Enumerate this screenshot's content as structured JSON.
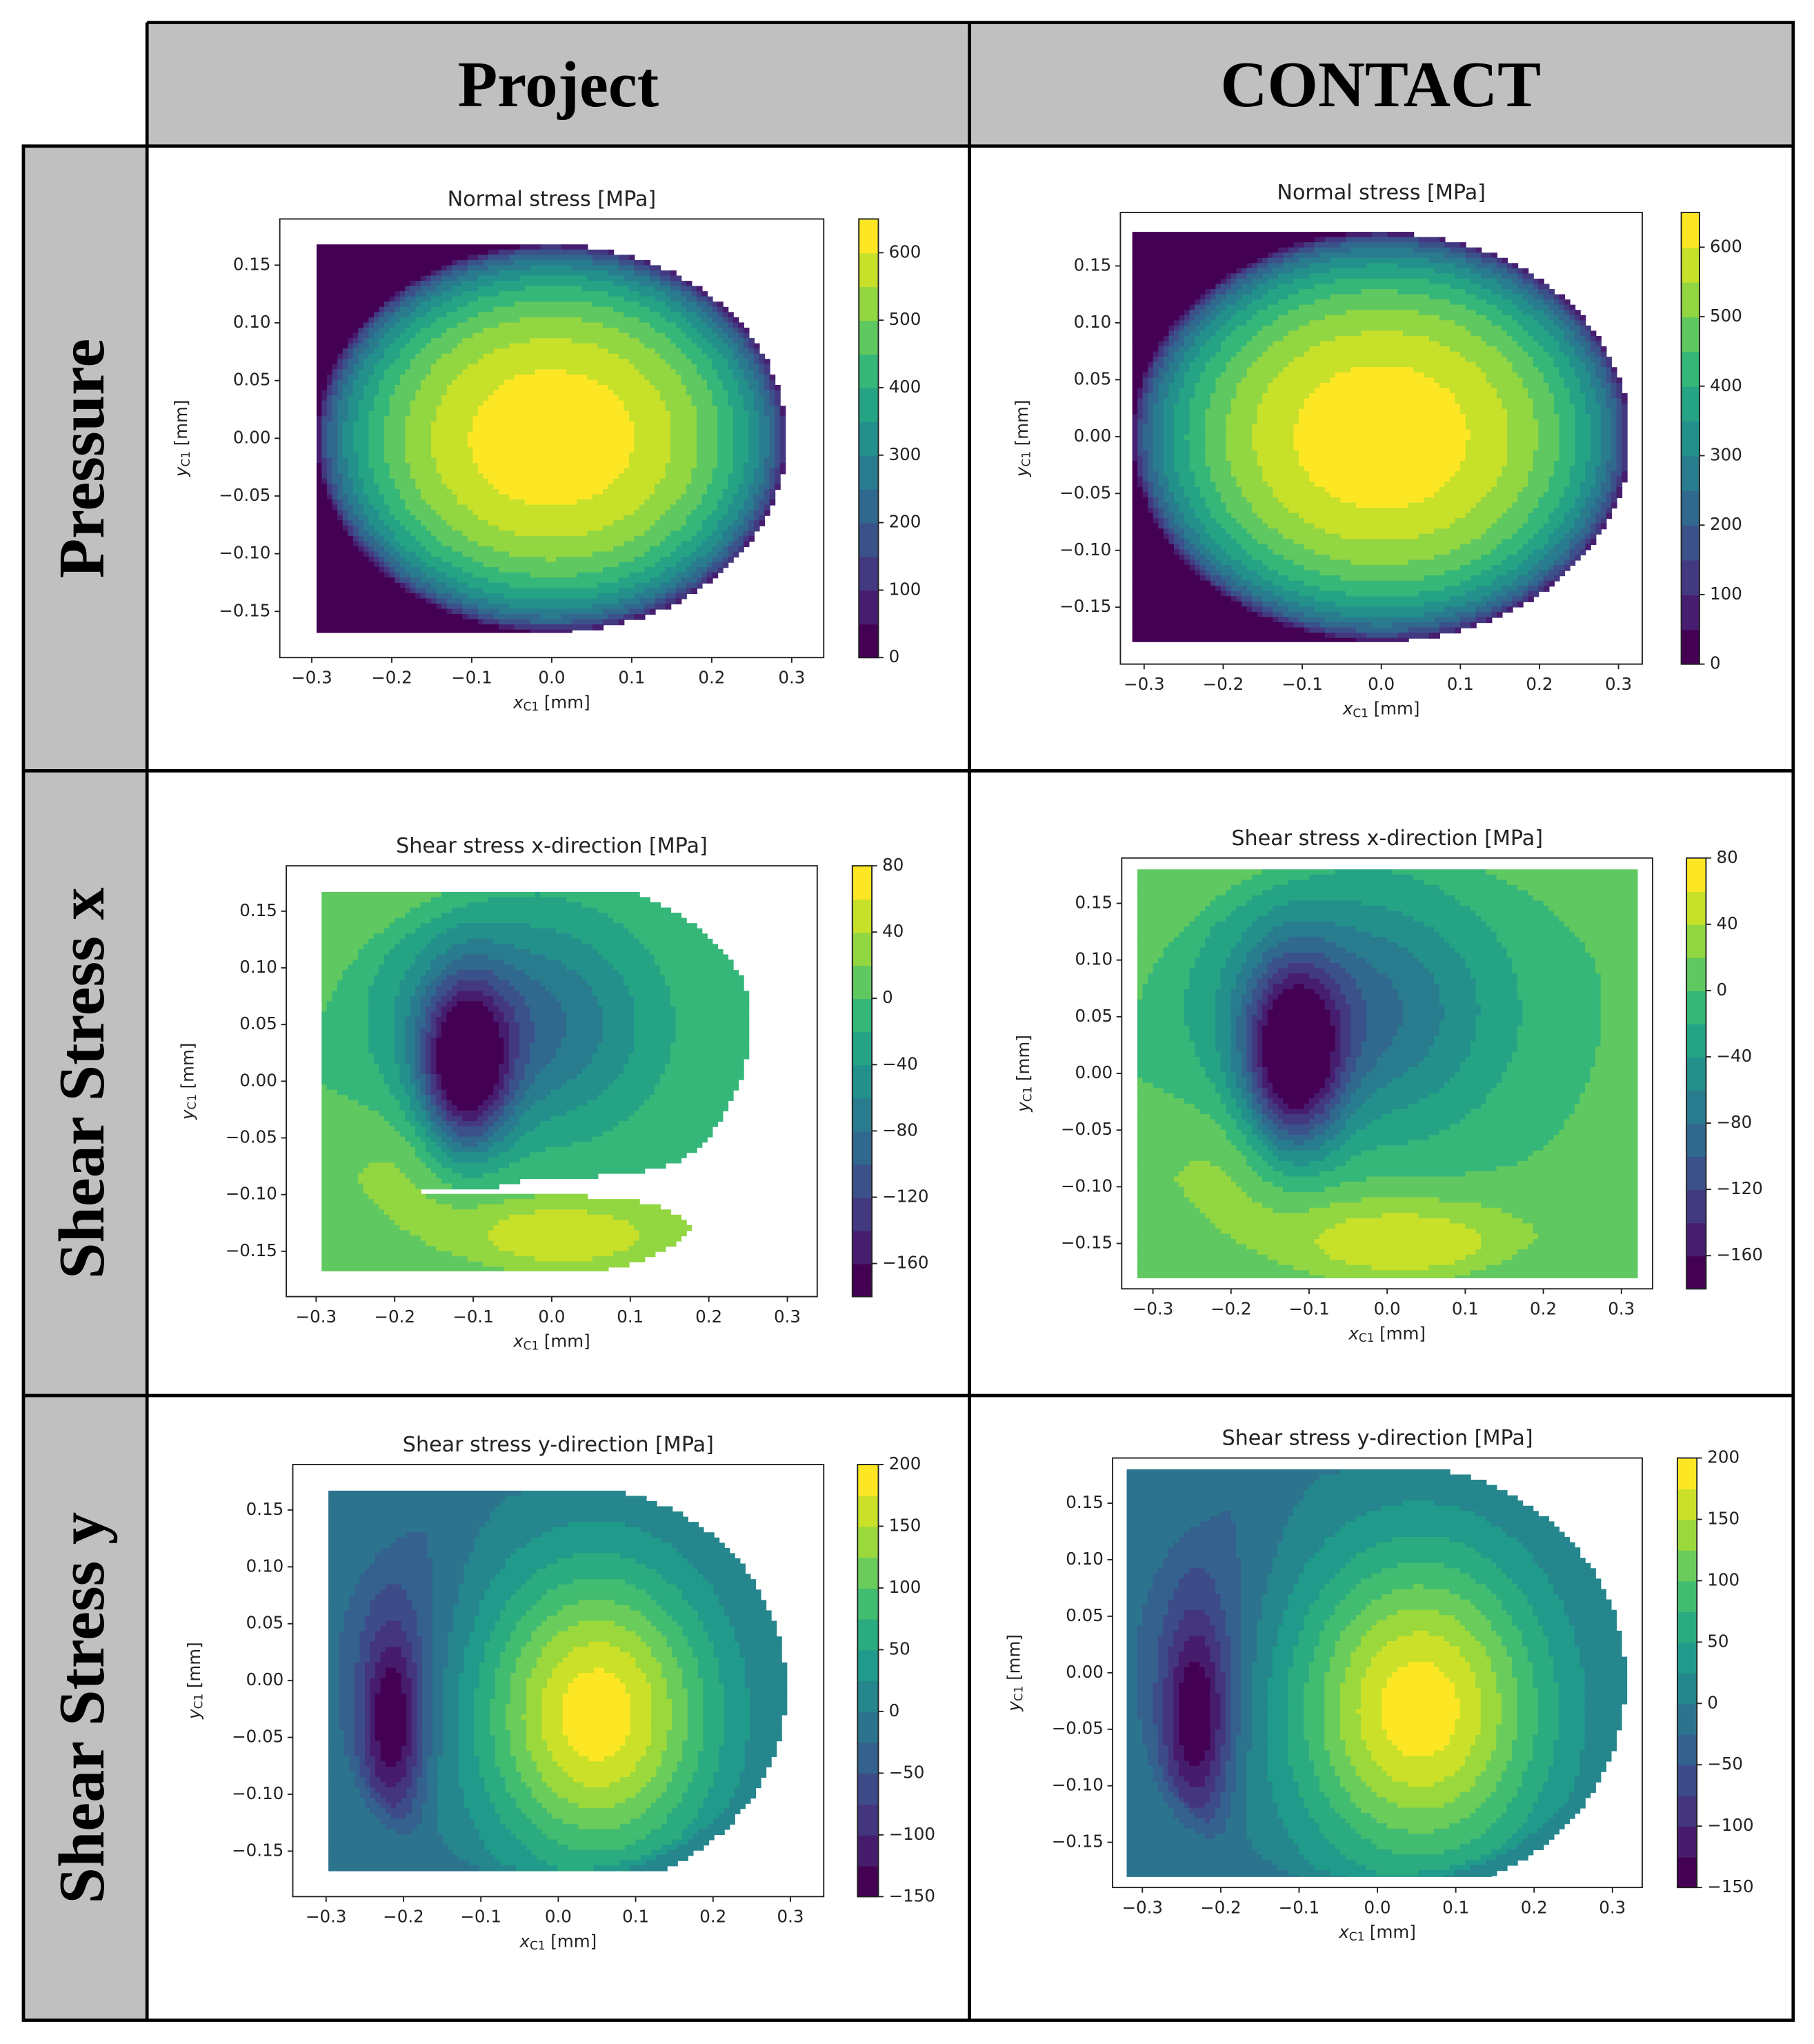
{
  "table": {
    "columns": [
      "Project",
      "CONTACT"
    ],
    "rows": [
      "Pressure",
      "Shear Stress x",
      "Shear Stress y"
    ]
  },
  "chart_data": [
    {
      "type": "contour",
      "title": "Normal stress [MPa]",
      "xlabel": {
        "symbol": "x",
        "subscript": "C1",
        "unit": "[mm]"
      },
      "ylabel": {
        "symbol": "y",
        "subscript": "C1",
        "unit": "[mm]"
      },
      "xlim": [
        -0.34,
        0.34
      ],
      "ylim": [
        -0.19,
        0.19
      ],
      "xticks": [
        {
          "value": -0.3,
          "label": "−0.3"
        },
        {
          "value": -0.2,
          "label": "−0.2"
        },
        {
          "value": -0.1,
          "label": "−0.1"
        },
        {
          "value": 0,
          "label": "0.0"
        },
        0.1,
        0.2,
        0.3
      ],
      "yticks": [
        {
          "value": -0.15,
          "label": "−0.15"
        },
        {
          "value": -0.1,
          "label": "−0.10"
        },
        {
          "value": -0.05,
          "label": "−0.05"
        },
        {
          "value": 0,
          "label": "0.00"
        },
        0.05,
        {
          "value": 0.1,
          "label": "0.10"
        },
        0.15
      ],
      "clim": [
        0,
        650
      ],
      "levels": [
        0,
        50,
        100,
        150,
        200,
        250,
        300,
        350,
        400,
        450,
        500,
        550,
        600,
        650
      ],
      "cticks": [
        0,
        100,
        200,
        300,
        400,
        500,
        600
      ],
      "colormap": "viridis"
    },
    {
      "type": "contour",
      "title": "Normal stress [MPa]",
      "xlabel": {
        "symbol": "x",
        "subscript": "C1",
        "unit": "[mm]"
      },
      "ylabel": {
        "symbol": "y",
        "subscript": "C1",
        "unit": "[mm]"
      },
      "xlim": [
        -0.33,
        0.33
      ],
      "ylim": [
        -0.2,
        0.197
      ],
      "xticks": [
        {
          "value": -0.3,
          "label": "−0.3"
        },
        {
          "value": -0.2,
          "label": "−0.2"
        },
        {
          "value": -0.1,
          "label": "−0.1"
        },
        {
          "value": 0,
          "label": "0.0"
        },
        0.1,
        0.2,
        0.3
      ],
      "yticks": [
        {
          "value": -0.15,
          "label": "−0.15"
        },
        {
          "value": -0.1,
          "label": "−0.10"
        },
        {
          "value": -0.05,
          "label": "−0.05"
        },
        {
          "value": 0,
          "label": "0.00"
        },
        0.05,
        {
          "value": 0.1,
          "label": "0.10"
        },
        0.15
      ],
      "clim": [
        0,
        650
      ],
      "levels": [
        0,
        50,
        100,
        150,
        200,
        250,
        300,
        350,
        400,
        450,
        500,
        550,
        600,
        650
      ],
      "cticks": [
        0,
        100,
        200,
        300,
        400,
        500,
        600
      ],
      "colormap": "viridis"
    },
    {
      "type": "contour",
      "title": "Shear stress x-direction [MPa]",
      "xlabel": {
        "symbol": "x",
        "subscript": "C1",
        "unit": "[mm]"
      },
      "ylabel": {
        "symbol": "y",
        "subscript": "C1",
        "unit": "[mm]"
      },
      "xlim": [
        -0.338,
        0.338
      ],
      "ylim": [
        -0.19,
        0.19
      ],
      "xticks": [
        {
          "value": -0.3,
          "label": "−0.3"
        },
        {
          "value": -0.2,
          "label": "−0.2"
        },
        {
          "value": -0.1,
          "label": "−0.1"
        },
        {
          "value": 0,
          "label": "0.0"
        },
        0.1,
        0.2,
        0.3
      ],
      "yticks": [
        {
          "value": -0.15,
          "label": "−0.15"
        },
        {
          "value": -0.1,
          "label": "−0.10"
        },
        {
          "value": -0.05,
          "label": "−0.05"
        },
        {
          "value": 0,
          "label": "0.00"
        },
        0.05,
        {
          "value": 0.1,
          "label": "0.10"
        },
        0.15
      ],
      "clim": [
        -180,
        80
      ],
      "levels": [
        -180,
        -160,
        -140,
        -120,
        -100,
        -80,
        -60,
        -40,
        -20,
        0,
        20,
        40,
        60,
        80
      ],
      "cticks": [
        {
          "value": -160,
          "label": "−160"
        },
        {
          "value": -120,
          "label": "−120"
        },
        {
          "value": -80,
          "label": "−80"
        },
        {
          "value": -40,
          "label": "−40"
        },
        0,
        40,
        80
      ],
      "colormap": "viridis"
    },
    {
      "type": "contour",
      "title": "Shear stress x-direction [MPa]",
      "xlabel": {
        "symbol": "x",
        "subscript": "C1",
        "unit": "[mm]"
      },
      "ylabel": {
        "symbol": "y",
        "subscript": "C1",
        "unit": "[mm]"
      },
      "xlim": [
        -0.34,
        0.34
      ],
      "ylim": [
        -0.19,
        0.19
      ],
      "xticks": [
        {
          "value": -0.3,
          "label": "−0.3"
        },
        {
          "value": -0.2,
          "label": "−0.2"
        },
        {
          "value": -0.1,
          "label": "−0.1"
        },
        {
          "value": 0,
          "label": "0.0"
        },
        0.1,
        0.2,
        0.3
      ],
      "yticks": [
        {
          "value": -0.15,
          "label": "−0.15"
        },
        {
          "value": -0.1,
          "label": "−0.10"
        },
        {
          "value": -0.05,
          "label": "−0.05"
        },
        {
          "value": 0,
          "label": "0.00"
        },
        0.05,
        {
          "value": 0.1,
          "label": "0.10"
        },
        0.15
      ],
      "clim": [
        -180,
        80
      ],
      "levels": [
        -180,
        -160,
        -140,
        -120,
        -100,
        -80,
        -60,
        -40,
        -20,
        0,
        20,
        40,
        60,
        80
      ],
      "cticks": [
        {
          "value": -160,
          "label": "−160"
        },
        {
          "value": -120,
          "label": "−120"
        },
        {
          "value": -80,
          "label": "−80"
        },
        {
          "value": -40,
          "label": "−40"
        },
        0,
        40,
        80
      ],
      "colormap": "viridis"
    },
    {
      "type": "contour",
      "title": "Shear stress y-direction [MPa]",
      "xlabel": {
        "symbol": "x",
        "subscript": "C1",
        "unit": "[mm]"
      },
      "ylabel": {
        "symbol": "y",
        "subscript": "C1",
        "unit": "[mm]"
      },
      "xlim": [
        -0.343,
        0.343
      ],
      "ylim": [
        -0.19,
        0.19
      ],
      "xticks": [
        {
          "value": -0.3,
          "label": "−0.3"
        },
        {
          "value": -0.2,
          "label": "−0.2"
        },
        {
          "value": -0.1,
          "label": "−0.1"
        },
        {
          "value": 0,
          "label": "0.0"
        },
        0.1,
        0.2,
        0.3
      ],
      "yticks": [
        {
          "value": -0.15,
          "label": "−0.15"
        },
        {
          "value": -0.1,
          "label": "−0.10"
        },
        {
          "value": -0.05,
          "label": "−0.05"
        },
        {
          "value": 0,
          "label": "0.00"
        },
        0.05,
        {
          "value": 0.1,
          "label": "0.10"
        },
        0.15
      ],
      "clim": [
        -150,
        200
      ],
      "levels": [
        -150,
        -125,
        -100,
        -75,
        -50,
        -25,
        0,
        25,
        50,
        75,
        100,
        125,
        150,
        175,
        200
      ],
      "cticks": [
        {
          "value": -150,
          "label": "−150"
        },
        {
          "value": -100,
          "label": "−100"
        },
        {
          "value": -50,
          "label": "−50"
        },
        0,
        50,
        100,
        150,
        200
      ],
      "colormap": "viridis"
    },
    {
      "type": "contour",
      "title": "Shear stress y-direction [MPa]",
      "xlabel": {
        "symbol": "x",
        "subscript": "C1",
        "unit": "[mm]"
      },
      "ylabel": {
        "symbol": "y",
        "subscript": "C1",
        "unit": "[mm]"
      },
      "xlim": [
        -0.338,
        0.338
      ],
      "ylim": [
        -0.19,
        0.19
      ],
      "xticks": [
        {
          "value": -0.3,
          "label": "−0.3"
        },
        {
          "value": -0.2,
          "label": "−0.2"
        },
        {
          "value": -0.1,
          "label": "−0.1"
        },
        {
          "value": 0,
          "label": "0.0"
        },
        0.1,
        0.2,
        0.3
      ],
      "yticks": [
        {
          "value": -0.15,
          "label": "−0.15"
        },
        {
          "value": -0.1,
          "label": "−0.10"
        },
        {
          "value": -0.05,
          "label": "−0.05"
        },
        {
          "value": 0,
          "label": "0.00"
        },
        0.05,
        {
          "value": 0.1,
          "label": "0.10"
        },
        0.15
      ],
      "clim": [
        -150,
        200
      ],
      "levels": [
        -150,
        -125,
        -100,
        -75,
        -50,
        -25,
        0,
        25,
        50,
        75,
        100,
        125,
        150,
        175,
        200
      ],
      "cticks": [
        {
          "value": -150,
          "label": "−150"
        },
        {
          "value": -100,
          "label": "−100"
        },
        {
          "value": -50,
          "label": "−50"
        },
        0,
        50,
        100,
        150,
        200
      ],
      "colormap": "viridis"
    }
  ]
}
